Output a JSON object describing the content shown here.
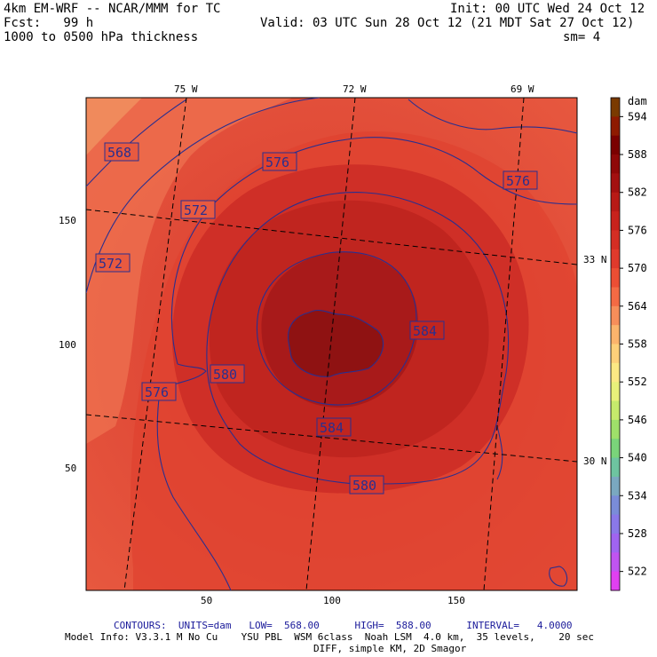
{
  "header": {
    "model": "4km EM-WRF -- NCAR/MMM for TC",
    "init": "Init: 00 UTC Wed 24 Oct 12",
    "fcst": "Fcst:   99 h",
    "valid": "Valid: 03 UTC Sun 28 Oct 12 (21 MDT Sat 27 Oct 12)",
    "field": "1000 to 0500 hPa thickness",
    "smoothing": "sm= 4"
  },
  "map": {
    "lon_labels": [
      "75 W",
      "72 W",
      "69 W"
    ],
    "lat_labels": [
      "33 N",
      "30 N"
    ],
    "grid_x_ticks": [
      "50",
      "100",
      "150"
    ],
    "grid_y_ticks": [
      "150",
      "100",
      "50"
    ],
    "contour_labels": [
      "568",
      "576",
      "576",
      "572",
      "572",
      "580",
      "576",
      "584",
      "584",
      "580"
    ],
    "contour_color": "#2a2f8f"
  },
  "colorbar": {
    "unit": "dam",
    "ticks": [
      "594",
      "588",
      "582",
      "576",
      "570",
      "564",
      "558",
      "552",
      "546",
      "540",
      "534",
      "528",
      "522"
    ]
  },
  "footer": {
    "contours": "CONTOURS:  UNITS=dam   LOW=  568.00      HIGH=  588.00      INTERVAL=   4.0000",
    "model_info": "Model Info: V3.3.1 M No Cu    YSU PBL  WSM 6class  Noah LSM  4.0 km,  35 levels,    20 sec",
    "diff": "DIFF, simple KM, 2D Smagor"
  }
}
